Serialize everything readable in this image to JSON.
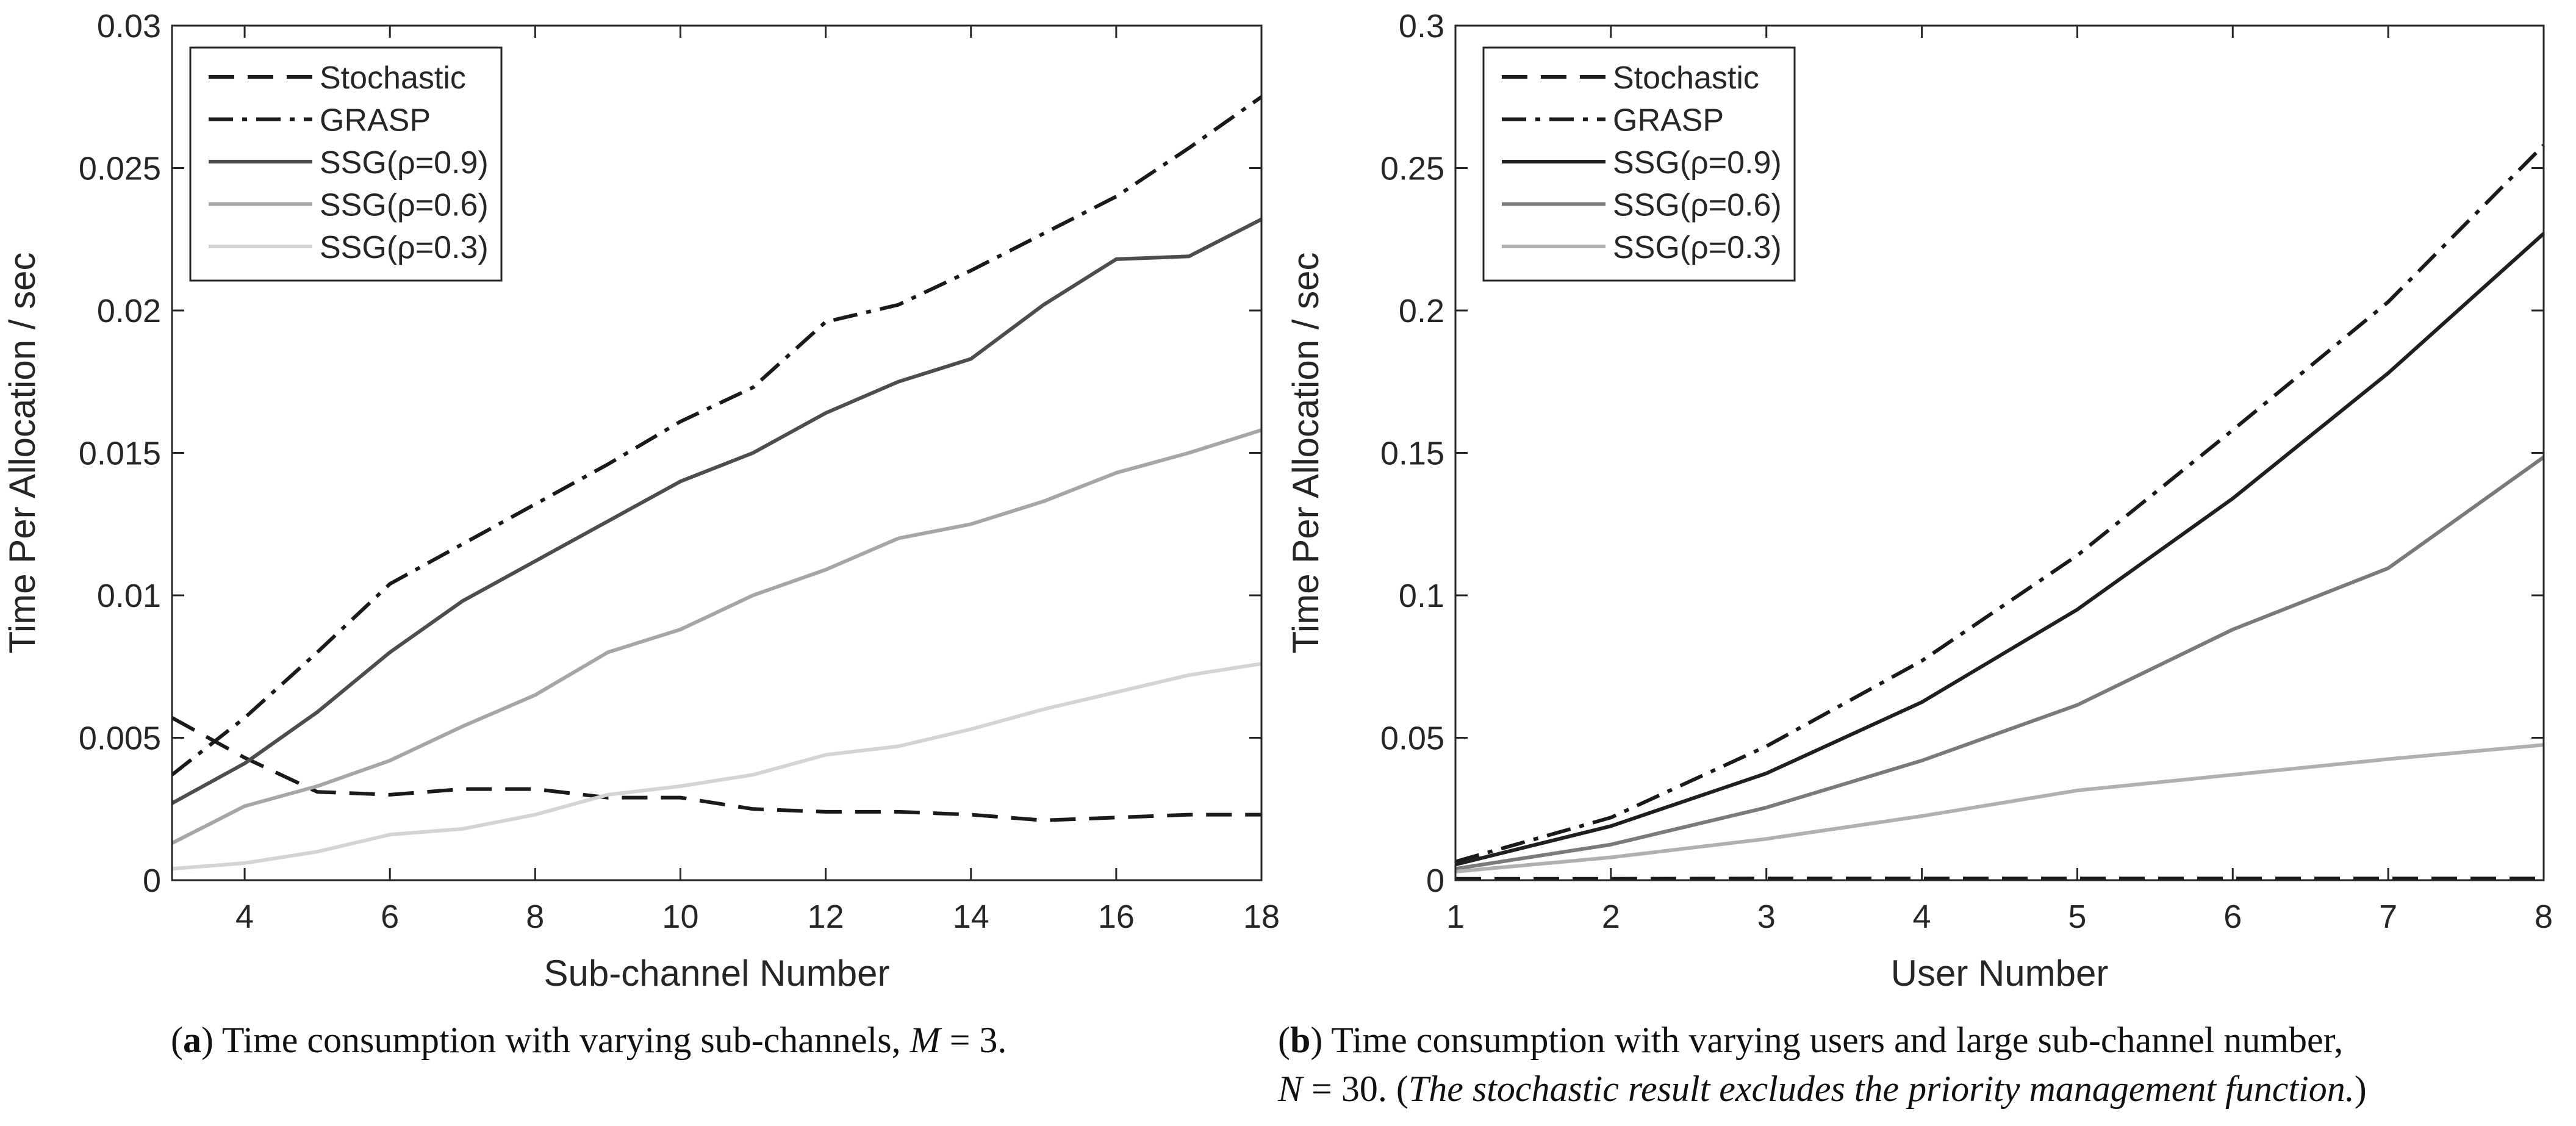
{
  "chart_data": [
    {
      "id": "a",
      "type": "line",
      "xlabel": "Sub-channel Number",
      "ylabel": "Time Per Allocation / sec",
      "xlim": [
        3,
        18
      ],
      "ylim": [
        0,
        0.03
      ],
      "xticks": [
        4,
        6,
        8,
        10,
        12,
        14,
        16,
        18
      ],
      "yticks": [
        0,
        0.005,
        0.01,
        0.015,
        0.02,
        0.025,
        0.03
      ],
      "ytick_labels": [
        "0",
        "0.005",
        "0.01",
        "0.015",
        "0.02",
        "0.025",
        "0.03"
      ],
      "x": [
        3,
        4,
        5,
        6,
        7,
        8,
        9,
        10,
        11,
        12,
        13,
        14,
        15,
        16,
        17,
        18
      ],
      "series": [
        {
          "name": "Stochastic",
          "style": "dashed",
          "color": "#1a1a1a",
          "values": [
            0.0057,
            0.0043,
            0.0031,
            0.003,
            0.0032,
            0.0032,
            0.0029,
            0.0029,
            0.0025,
            0.0024,
            0.0024,
            0.0023,
            0.0021,
            0.0022,
            0.0023,
            0.0023
          ]
        },
        {
          "name": "GRASP",
          "style": "dashdot",
          "color": "#1a1a1a",
          "values": [
            0.0037,
            0.0057,
            0.008,
            0.0104,
            0.0118,
            0.0132,
            0.0146,
            0.0161,
            0.0173,
            0.0196,
            0.0202,
            0.0214,
            0.0227,
            0.024,
            0.0257,
            0.0275
          ]
        },
        {
          "name": "SSG(ρ=0.9)",
          "style": "solid",
          "color": "#4d4d4d",
          "values": [
            0.0027,
            0.0041,
            0.0059,
            0.008,
            0.0098,
            0.0112,
            0.0126,
            0.014,
            0.015,
            0.0164,
            0.0175,
            0.0183,
            0.0202,
            0.0218,
            0.0219,
            0.0232
          ]
        },
        {
          "name": "SSG(ρ=0.6)",
          "style": "solid",
          "color": "#a6a6a6",
          "values": [
            0.0013,
            0.0026,
            0.0033,
            0.0042,
            0.0054,
            0.0065,
            0.008,
            0.0088,
            0.01,
            0.0109,
            0.012,
            0.0125,
            0.0133,
            0.0143,
            0.015,
            0.0158
          ]
        },
        {
          "name": "SSG(ρ=0.3)",
          "style": "solid",
          "color": "#d4d4d4",
          "values": [
            0.0004,
            0.0006,
            0.001,
            0.0016,
            0.0018,
            0.0023,
            0.003,
            0.0033,
            0.0037,
            0.0044,
            0.0047,
            0.0053,
            0.006,
            0.0066,
            0.0072,
            0.0076
          ]
        }
      ],
      "caption": {
        "label": "a",
        "text": " Time consumption with varying sub-channels, ",
        "math": "M",
        "math_value": " = 3."
      }
    },
    {
      "id": "b",
      "type": "line",
      "xlabel": "User Number",
      "ylabel": "Time Per Allocation / sec",
      "xlim": [
        1,
        8
      ],
      "ylim": [
        0,
        0.3
      ],
      "xticks": [
        1,
        2,
        3,
        4,
        5,
        6,
        7,
        8
      ],
      "yticks": [
        0,
        0.05,
        0.1,
        0.15,
        0.2,
        0.25,
        0.3
      ],
      "ytick_labels": [
        "0",
        "0.05",
        "0.1",
        "0.15",
        "0.2",
        "0.25",
        "0.3"
      ],
      "x": [
        1,
        2,
        3,
        4,
        5,
        6,
        7,
        8
      ],
      "series": [
        {
          "name": "Stochastic",
          "style": "dashed",
          "color": "#1a1a1a",
          "values": [
            0.0005,
            0.0005,
            0.0006,
            0.0006,
            0.0006,
            0.0006,
            0.0006,
            0.0006
          ]
        },
        {
          "name": "GRASP",
          "style": "dashdot",
          "color": "#1a1a1a",
          "values": [
            0.0065,
            0.022,
            0.047,
            0.077,
            0.114,
            0.158,
            0.203,
            0.258
          ]
        },
        {
          "name": "SSG(ρ=0.9)",
          "style": "solid",
          "color": "#1f1f1f",
          "values": [
            0.0055,
            0.019,
            0.0375,
            0.0625,
            0.095,
            0.134,
            0.178,
            0.227
          ]
        },
        {
          "name": "SSG(ρ=0.6)",
          "style": "solid",
          "color": "#7a7a7a",
          "values": [
            0.004,
            0.0125,
            0.0255,
            0.042,
            0.0615,
            0.088,
            0.1095,
            0.1485
          ]
        },
        {
          "name": "SSG(ρ=0.3)",
          "style": "solid",
          "color": "#b0b0b0",
          "values": [
            0.003,
            0.008,
            0.0145,
            0.0225,
            0.0315,
            0.037,
            0.0425,
            0.0475
          ]
        }
      ],
      "caption": {
        "label": "b",
        "line1": " Time consumption with varying users and large sub-channel number,",
        "math": "N",
        "math_value": " = 30. (",
        "note": "The stochastic result excludes the priority management function.",
        "close": ")"
      }
    }
  ]
}
